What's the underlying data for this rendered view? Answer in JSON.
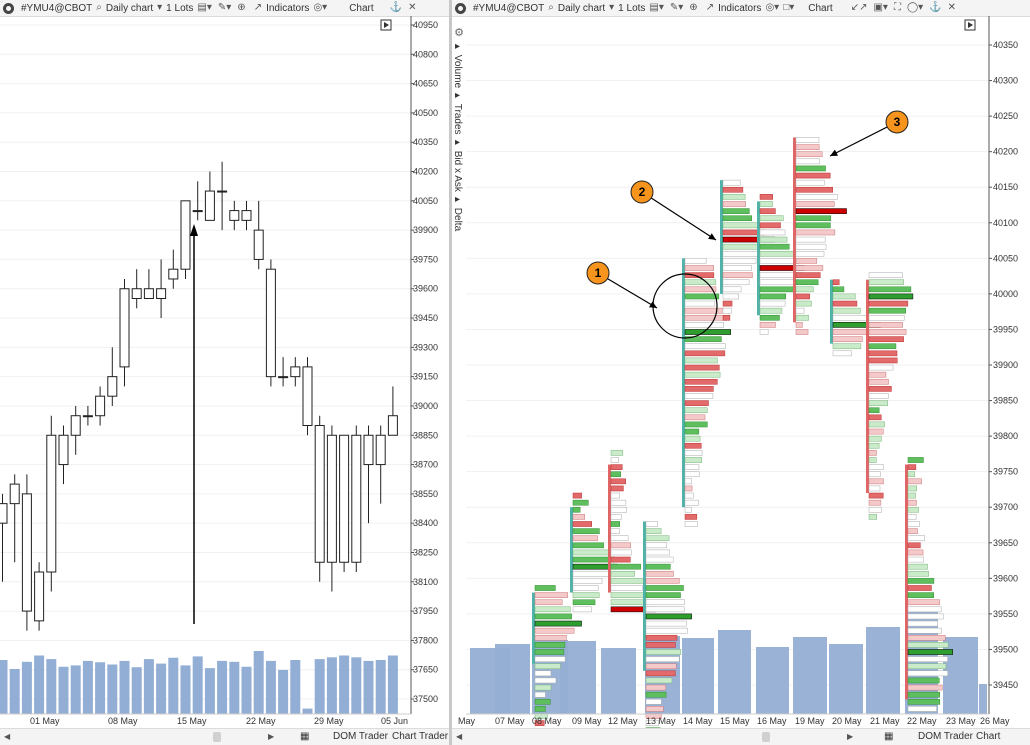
{
  "left": {
    "toolbar": {
      "symbol": "#YMU4@CBOT",
      "chart_type": "Daily chart",
      "lots": "1 Lots",
      "indicators": "Indicators",
      "chart": "Chart"
    },
    "price_labels": [
      "40950",
      "40800",
      "40650",
      "40500",
      "40350",
      "40200",
      "40050",
      "39900",
      "39750",
      "39600",
      "39450",
      "39300",
      "39150",
      "39000",
      "38850",
      "38700",
      "38550",
      "38400",
      "38250",
      "38100",
      "37950",
      "37800",
      "37650",
      "37500"
    ],
    "date_labels": [
      "01 May",
      "08 May",
      "15 May",
      "22 May",
      "29 May",
      "05 Jun"
    ],
    "candles": [
      [
        38400,
        38500,
        38100,
        38550,
        -1
      ],
      [
        38500,
        38600,
        38200,
        38650,
        -1
      ],
      [
        37950,
        38550,
        37850,
        38650,
        1
      ],
      [
        37900,
        38150,
        37850,
        38200,
        1
      ],
      [
        38150,
        38850,
        38050,
        38950,
        1
      ],
      [
        38700,
        38850,
        38600,
        38900,
        1
      ],
      [
        38850,
        38950,
        38750,
        39000,
        1
      ],
      [
        38950,
        38950,
        38900,
        39000,
        0
      ],
      [
        38950,
        39050,
        38900,
        39100,
        1
      ],
      [
        39050,
        39150,
        39000,
        39300,
        1
      ],
      [
        39200,
        39600,
        39100,
        39650,
        1
      ],
      [
        39550,
        39600,
        39500,
        39700,
        1
      ],
      [
        39550,
        39600,
        39550,
        39700,
        1
      ],
      [
        39550,
        39600,
        39450,
        39750,
        1
      ],
      [
        39650,
        39700,
        39600,
        39800,
        1
      ],
      [
        39700,
        40050,
        39650,
        40050,
        1
      ],
      [
        40000,
        40000,
        39950,
        40150,
        0
      ],
      [
        39950,
        40100,
        39950,
        40200,
        1
      ],
      [
        40100,
        40100,
        39900,
        40250,
        -1
      ],
      [
        40000,
        39950,
        39900,
        40050,
        -1
      ],
      [
        40000,
        39950,
        39900,
        40050,
        -1
      ],
      [
        39900,
        39750,
        39700,
        40050,
        -1
      ],
      [
        39700,
        39150,
        39100,
        39750,
        -1
      ],
      [
        39150,
        39150,
        39100,
        39250,
        0
      ],
      [
        39150,
        39200,
        39100,
        39250,
        1
      ],
      [
        39200,
        38900,
        38850,
        39250,
        -1
      ],
      [
        38900,
        38200,
        38100,
        38950,
        -1
      ],
      [
        38200,
        38850,
        38050,
        38900,
        1
      ],
      [
        38850,
        38200,
        38150,
        38850,
        -1
      ],
      [
        38200,
        38850,
        38150,
        38900,
        1
      ],
      [
        38850,
        38700,
        38400,
        38900,
        -1
      ],
      [
        38700,
        38850,
        38500,
        38900,
        1
      ],
      [
        38850,
        38950,
        38850,
        39100,
        1
      ]
    ],
    "volumes": [
      120,
      100,
      116,
      130,
      122,
      105,
      108,
      118,
      115,
      110,
      118,
      104,
      122,
      112,
      125,
      108,
      128,
      102,
      118,
      116,
      105,
      140,
      118,
      98,
      120,
      12,
      122,
      126,
      130,
      126,
      118,
      120,
      130
    ]
  },
  "right": {
    "toolbar": {
      "symbol": "#YMU4@CBOT",
      "chart_type": "Daily chart",
      "lots": "1 Lots",
      "indicators": "Indicators",
      "chart": "Chart"
    },
    "side_tabs": [
      "Volume",
      "Trades",
      "Bid x Ask",
      "Delta"
    ],
    "price_labels": [
      "40350",
      "40300",
      "40250",
      "40200",
      "40150",
      "40100",
      "40050",
      "40000",
      "39950",
      "39900",
      "39850",
      "39800",
      "39750",
      "39700",
      "39650",
      "39600",
      "39550",
      "39500",
      "39450"
    ],
    "date_labels": [
      "May",
      "07 May",
      "08 May",
      "09 May",
      "12 May",
      "13 May",
      "14 May",
      "15 May",
      "16 May",
      "19 May",
      "20 May",
      "21 May",
      "22 May",
      "23 May",
      "26 May"
    ],
    "profiles": [
      {
        "low": 39400,
        "high": 39590,
        "poc": 39540,
        "hist_high": 39580,
        "hist_low": 39480
      },
      {
        "low": 39560,
        "high": 39720,
        "poc": 39620,
        "hist_high": 39700,
        "hist_low": 39580
      },
      {
        "low": 39560,
        "high": 39780,
        "poc": 39560,
        "hist_high": 39760,
        "hist_low": 39580
      },
      {
        "low": 39380,
        "high": 39680,
        "poc": 39550,
        "hist_high": 39680,
        "hist_low": 39470
      },
      {
        "low": 39680,
        "high": 40050,
        "poc": 39950,
        "hist_high": 40050,
        "hist_low": 39700
      },
      {
        "low": 39970,
        "high": 40160,
        "poc": 40080,
        "hist_high": 40160,
        "hist_low": 40000
      },
      {
        "low": 39950,
        "high": 40140,
        "poc": 40040,
        "hist_high": 40130,
        "hist_low": 39970
      },
      {
        "low": 39950,
        "high": 40220,
        "poc": 40120,
        "hist_high": 40220,
        "hist_low": 39960
      },
      {
        "low": 39920,
        "high": 40020,
        "poc": 39960,
        "hist_high": 40020,
        "hist_low": 39930
      },
      {
        "low": 39690,
        "high": 40030,
        "poc": 40000,
        "hist_high": 40020,
        "hist_low": 39720
      },
      {
        "low": 39420,
        "high": 39770,
        "poc": 39500,
        "hist_high": 39760,
        "hist_low": 39430
      }
    ],
    "callouts": [
      "1",
      "2",
      "3"
    ]
  },
  "bottom": {
    "dom_trader": "DOM Trader",
    "chart_trader": "Chart Trader"
  }
}
